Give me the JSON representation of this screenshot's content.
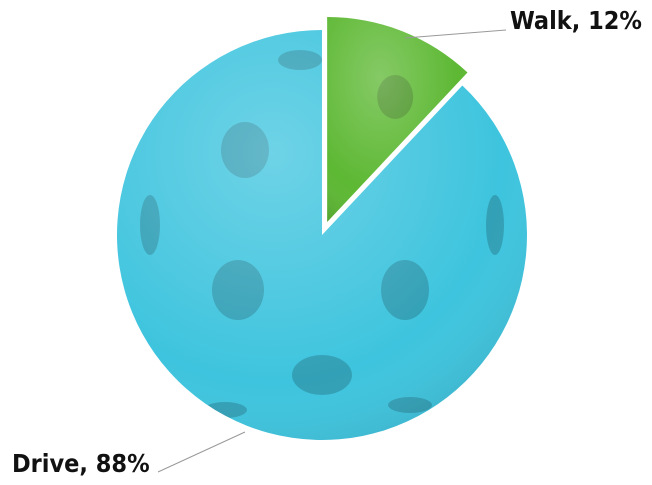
{
  "chart_data": {
    "type": "pie",
    "values": [
      88,
      12
    ],
    "value_labels": [
      "Drive, 88%",
      "Walk, 12%"
    ],
    "colors": [
      "#3ec4de",
      "#5db833"
    ]
  }
}
